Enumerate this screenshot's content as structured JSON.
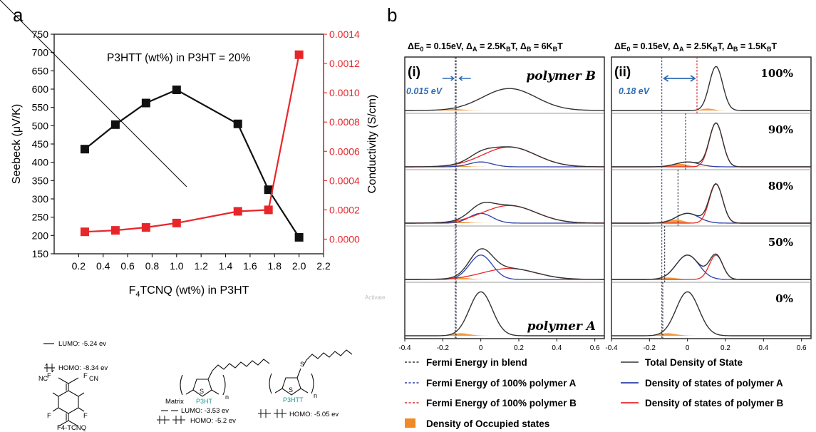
{
  "panel_a": {
    "label": "a",
    "annotation": "P3HTT (wt%) in P3HT = 20%",
    "xlabel_pre": "F",
    "xlabel_sub": "4",
    "xlabel_post": "TCNQ (wt%) in P3HT",
    "ylabel_left": "Seebeck (μV/K)",
    "ylabel_right": "Conductivity (S/cm)",
    "colors": {
      "seebeck": "#111111",
      "conductivity": "#e8262a"
    }
  },
  "chart_data": [
    {
      "type": "line",
      "panel": "a",
      "x": [
        0.25,
        0.5,
        0.75,
        1.0,
        1.5,
        1.75,
        2.0
      ],
      "xlim": [
        0.0,
        2.2
      ],
      "xticks": [
        "0.2",
        "0.4",
        "0.6",
        "0.8",
        "1.0",
        "1.2",
        "1.4",
        "1.6",
        "1.8",
        "2.0",
        "2.2"
      ],
      "series": [
        {
          "axis": "left",
          "values": [
            436,
            503,
            562,
            598,
            505,
            325,
            195
          ],
          "color": "#111111"
        },
        {
          "axis": "right",
          "values": [
            5e-05,
            6e-05,
            8e-05,
            0.00011,
            0.00019,
            0.0002,
            0.00126
          ],
          "color": "#e8262a"
        }
      ],
      "ylim_left": [
        150,
        750
      ],
      "yticks_left": [
        "150",
        "200",
        "250",
        "300",
        "350",
        "400",
        "450",
        "500",
        "550",
        "600",
        "650",
        "700",
        "750"
      ],
      "ylim_right": [
        -0.0001,
        0.0014
      ],
      "yticks_right": [
        "0.0000",
        "0.0002",
        "0.0004",
        "0.0006",
        "0.0008",
        "0.0010",
        "0.0012",
        "0.0014"
      ]
    },
    {
      "type": "line",
      "panel": "b",
      "subtype": "density-of-states",
      "xlim": [
        -0.4,
        0.65
      ],
      "xticks": [
        "-0.4",
        "-0.2",
        "0",
        "0.2",
        "0.4",
        "0.6"
      ],
      "subplots": [
        {
          "label": "(i)",
          "header": "ΔE₀ = 0.15eV, Δ_A = 2.5K_BT, Δ_B = 6K_BT",
          "gap": "0.015 eV",
          "rows": [
            "polymer B",
            "",
            "",
            "",
            "polymer A"
          ],
          "fermi_blend": [
            -0.13,
            -0.13,
            -0.13,
            -0.13,
            -0.13
          ],
          "fermi_A": -0.135,
          "fermi_B": -0.12,
          "A_sigma": 0.06,
          "B_sigma": 0.14
        },
        {
          "label": "(ii)",
          "header": "ΔE₀ = 0.15eV, Δ_A = 2.5K_BT, Δ_B = 1.5K_BT",
          "gap": "0.18 eV",
          "rows": [
            "100%",
            "90%",
            "80%",
            "50%",
            "0%"
          ],
          "fermi_blend": [
            0.05,
            -0.01,
            -0.05,
            -0.12,
            -0.13
          ],
          "fermi_A": -0.135,
          "fermi_B": 0.05,
          "A_sigma": 0.06,
          "B_sigma": 0.035
        }
      ],
      "row_fraction_B": [
        1.0,
        0.9,
        0.8,
        0.5,
        0.0
      ]
    }
  ],
  "panel_b": {
    "label": "b",
    "header_i_pre": "ΔE",
    "header_i_tail": " = 0.15eV, Δ",
    "header_i": [
      "ΔE",
      "0",
      " = 0.15eV, Δ",
      "A",
      " = 2.5K",
      "B",
      "T, Δ",
      "B",
      " = 6K",
      "B",
      "T"
    ],
    "header_ii": [
      "ΔE",
      "0",
      " = 0.15eV, Δ",
      "A",
      " = 2.5K",
      "B",
      "T, Δ",
      "B",
      " = 1.5K",
      "B",
      "T"
    ],
    "label_i": "(i)",
    "label_ii": "(ii)",
    "gap_i": "0.015 eV",
    "gap_ii": "0.18 eV",
    "poly_b": "polymer B",
    "poly_a": "polymer A",
    "pct": [
      "100%",
      "90%",
      "80%",
      "50%",
      "0%"
    ],
    "watermark": "Activate"
  },
  "legend": {
    "fermi_blend": "Fermi Energy in blend",
    "fermi_a": "Fermi Energy of 100% polymer A",
    "fermi_b": "Fermi Energy of 100% polymer B",
    "occupied": "Density of Occupied states",
    "total": "Total Density of State",
    "dos_a": "Density of states of polymer A",
    "dos_b": "Density of states of polymer B",
    "colors": {
      "blend": "#333333",
      "a": "#2b3fa6",
      "b": "#e8262a",
      "occupied": "#f08a24"
    }
  },
  "structures": {
    "lumo_f4": "LUMO: -5.24 ev",
    "homo_f4": "HOMO: -8.34 ev",
    "f4_name": "F4-TCNQ",
    "matrix": "Matrix",
    "lumo_p3ht": "LUMO: -3.53 ev",
    "homo_p3ht": "HOMO: -5.2 ev",
    "homo_p3htt": "HOMO: -5.05 ev",
    "p3ht": "P3HT",
    "p3htt": "P3HTT",
    "n": "n",
    "s": "S",
    "f": "F",
    "nc": "NC",
    "cn": "CN",
    "colors": {
      "polymer_label": "#1a9a9a"
    }
  }
}
